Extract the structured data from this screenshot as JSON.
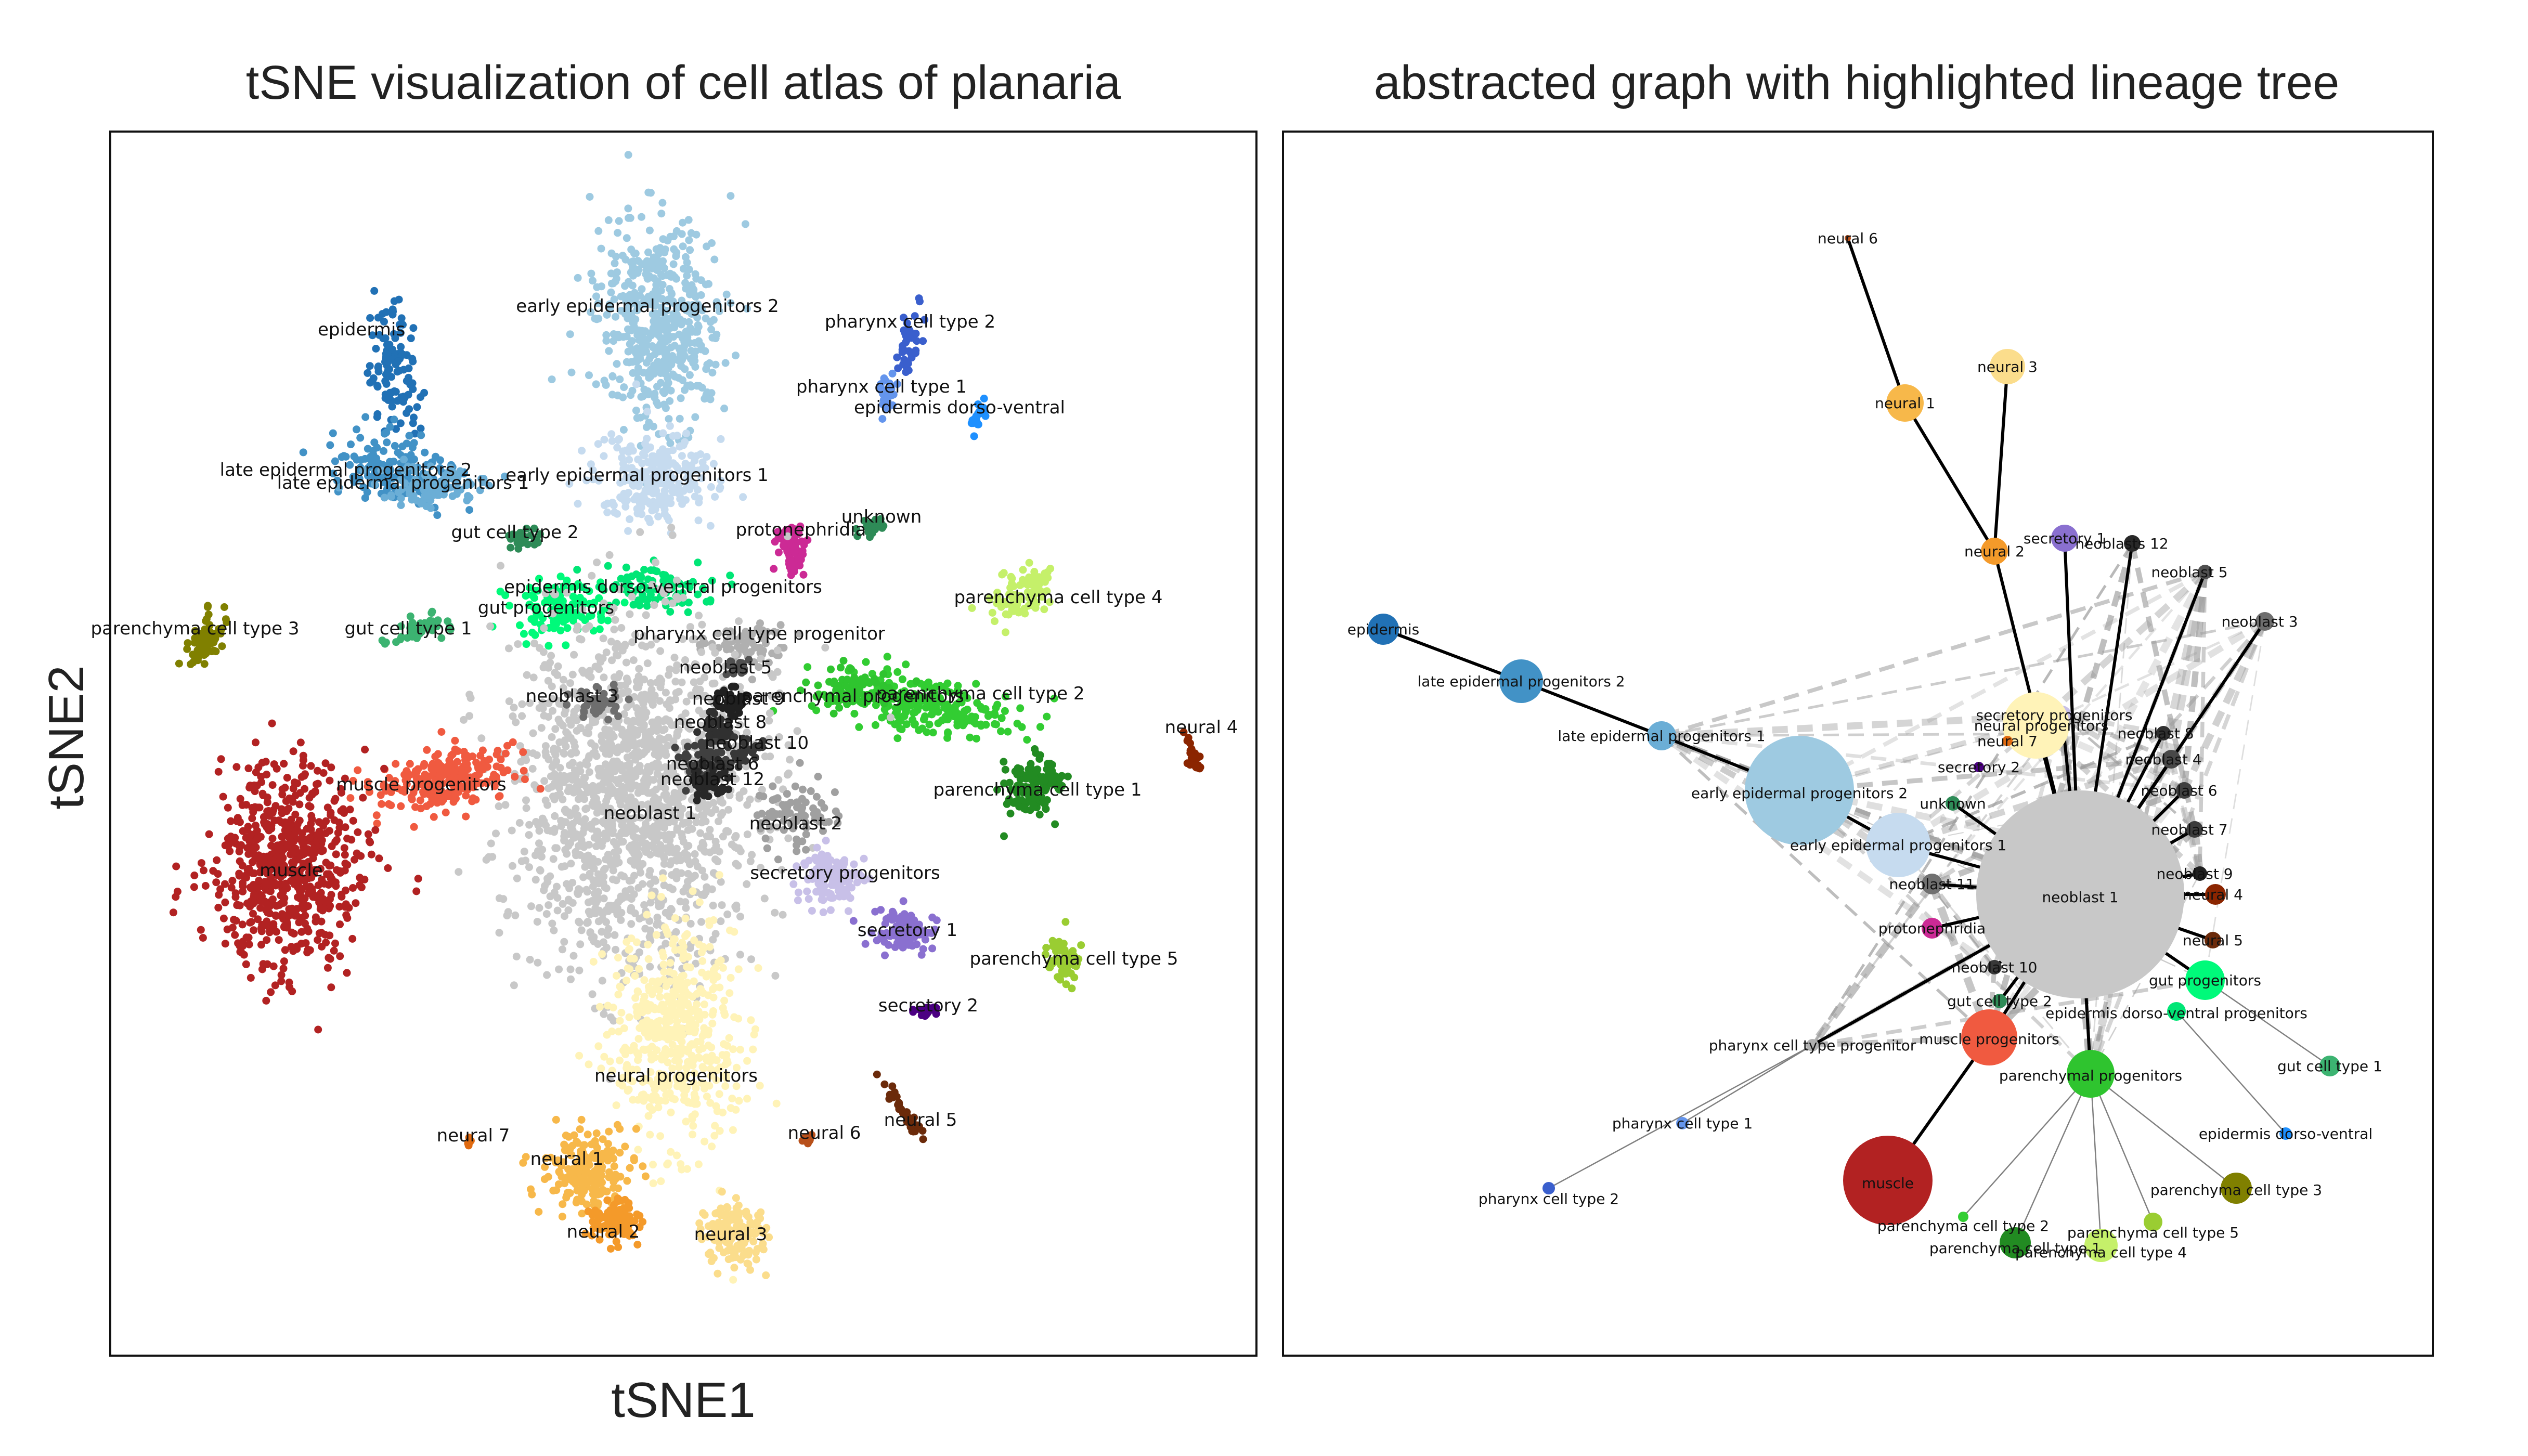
{
  "titles": {
    "left": "tSNE visualization of cell atlas of planaria",
    "right": "abstracted graph with highlighted lineage tree"
  },
  "axes": {
    "x_label": "tSNE1",
    "y_label": "tSNE2"
  },
  "tsne_clusters": [
    {
      "label": "early epidermal progenitors 2",
      "color": "#9ecae1"
    },
    {
      "label": "early epidermal progenitors 1",
      "color": "#c6dbef"
    },
    {
      "label": "epidermis",
      "color": "#2171b5"
    },
    {
      "label": "late epidermal progenitors 2",
      "color": "#4292c6"
    },
    {
      "label": "late epidermal progenitors 1",
      "color": "#6baed6"
    },
    {
      "label": "pharynx cell type 2",
      "color": "#3a5fcd"
    },
    {
      "label": "pharynx cell type 1",
      "color": "#6495ed"
    },
    {
      "label": "epidermis dorso-ventral",
      "color": "#1e90ff"
    },
    {
      "label": "gut cell type 2",
      "color": "#2e8b57"
    },
    {
      "label": "gut cell type 1",
      "color": "#3cb371"
    },
    {
      "label": "gut progenitors",
      "color": "#00fa7a"
    },
    {
      "label": "epidermis dorso-ventral progenitors",
      "color": "#00e676"
    },
    {
      "label": "protonephridia",
      "color": "#cc2a95"
    },
    {
      "label": "unknown",
      "color": "#2e8b57"
    },
    {
      "label": "parenchyma cell type 4",
      "color": "#c5f06a"
    },
    {
      "label": "parenchyma cell type 3",
      "color": "#808000"
    },
    {
      "label": "parenchyma cell type 2",
      "color": "#32cd32"
    },
    {
      "label": "parenchyma cell type 1",
      "color": "#228b22"
    },
    {
      "label": "parenchyma cell type 5",
      "color": "#9acd32"
    },
    {
      "label": "parenchymal progenitors",
      "color": "#2fc42f"
    },
    {
      "label": "pharynx cell type progenitor",
      "color": "#b0b0b0"
    },
    {
      "label": "neoblast 1",
      "color": "#c8c8c8"
    },
    {
      "label": "neoblast 2",
      "color": "#a0a0a0"
    },
    {
      "label": "neoblast 3",
      "color": "#6e6e6e"
    },
    {
      "label": "neoblast 5",
      "color": "#505050"
    },
    {
      "label": "neoblast 6",
      "color": "#404040"
    },
    {
      "label": "neoblast 8",
      "color": "#303030"
    },
    {
      "label": "neoblast 9",
      "color": "#202020"
    },
    {
      "label": "neoblast 10",
      "color": "#383838"
    },
    {
      "label": "neoblast 12",
      "color": "#282828"
    },
    {
      "label": "neural 4",
      "color": "#8b2500"
    },
    {
      "label": "neural 5",
      "color": "#6b2a0a"
    },
    {
      "label": "neural 6",
      "color": "#b8501a"
    },
    {
      "label": "neural 7",
      "color": "#e06a10"
    },
    {
      "label": "muscle progenitors",
      "color": "#f05a40"
    },
    {
      "label": "muscle",
      "color": "#b22222"
    },
    {
      "label": "secretory progenitors",
      "color": "#c8c0e8"
    },
    {
      "label": "secretory 1",
      "color": "#8a70d0"
    },
    {
      "label": "secretory 2",
      "color": "#4b0082"
    },
    {
      "label": "neural progenitors",
      "color": "#fff3b8"
    },
    {
      "label": "neural 1",
      "color": "#f7b84a"
    },
    {
      "label": "neural 2",
      "color": "#f49a2a"
    },
    {
      "label": "neural 3",
      "color": "#fbdd8c"
    }
  ],
  "graph_nodes": [
    {
      "label": "neural 6",
      "color": "#b8501a"
    },
    {
      "label": "neural 3",
      "color": "#fbdd8c"
    },
    {
      "label": "neural 1",
      "color": "#f7b84a"
    },
    {
      "label": "neural 2",
      "color": "#f49a2a"
    },
    {
      "label": "secretory 1",
      "color": "#8a70d0"
    },
    {
      "label": "neoblasts 12",
      "color": "#282828"
    },
    {
      "label": "neoblast 5",
      "color": "#505050"
    },
    {
      "label": "neoblast 3",
      "color": "#6e6e6e"
    },
    {
      "label": "epidermis",
      "color": "#2171b5"
    },
    {
      "label": "late epidermal progenitors 2",
      "color": "#4292c6"
    },
    {
      "label": "late epidermal progenitors 1",
      "color": "#6baed6"
    },
    {
      "label": "secretory progenitors",
      "color": "#c8c0e8"
    },
    {
      "label": "neural progenitors",
      "color": "#fff3b8"
    },
    {
      "label": "neural 7",
      "color": "#e06a10"
    },
    {
      "label": "neoblast 8",
      "color": "#303030"
    },
    {
      "label": "secretory 2",
      "color": "#4b0082"
    },
    {
      "label": "neoblast 4",
      "color": "#484848"
    },
    {
      "label": "early epidermal progenitors 2",
      "color": "#9ecae1"
    },
    {
      "label": "unknown",
      "color": "#2e8b57"
    },
    {
      "label": "neoblast 6",
      "color": "#404040"
    },
    {
      "label": "neoblast 7",
      "color": "#3c3c3c"
    },
    {
      "label": "early epidermal progenitors 1",
      "color": "#c6dbef"
    },
    {
      "label": "neoblast 1",
      "color": "#c8c8c8"
    },
    {
      "label": "neoblast 9",
      "color": "#202020"
    },
    {
      "label": "neoblast 11",
      "color": "#707070"
    },
    {
      "label": "neural 4",
      "color": "#8b2500"
    },
    {
      "label": "protonephridia",
      "color": "#cc2a95"
    },
    {
      "label": "neural 5",
      "color": "#6b2a0a"
    },
    {
      "label": "neoblast 10",
      "color": "#383838"
    },
    {
      "label": "gut progenitors",
      "color": "#00fa7a"
    },
    {
      "label": "gut cell type 2",
      "color": "#2e8b57"
    },
    {
      "label": "epidermis dorso-ventral progenitors",
      "color": "#00e676"
    },
    {
      "label": "muscle progenitors",
      "color": "#f05a40"
    },
    {
      "label": "pharynx cell type progenitor",
      "color": "#b0b0b0"
    },
    {
      "label": "gut cell type 1",
      "color": "#3cb371"
    },
    {
      "label": "parenchymal progenitors",
      "color": "#2fc42f"
    },
    {
      "label": "pharynx cell type 1",
      "color": "#6495ed"
    },
    {
      "label": "epidermis dorso-ventral",
      "color": "#1e90ff"
    },
    {
      "label": "muscle",
      "color": "#b22222"
    },
    {
      "label": "parenchyma cell type 3",
      "color": "#808000"
    },
    {
      "label": "pharynx cell type 2",
      "color": "#3a5fcd"
    },
    {
      "label": "parenchyma cell type 2",
      "color": "#32cd32"
    },
    {
      "label": "parenchyma cell type 5",
      "color": "#9acd32"
    },
    {
      "label": "parenchyma cell type 1",
      "color": "#228b22"
    },
    {
      "label": "parenchyma cell type 4",
      "color": "#c5f06a"
    }
  ],
  "tree_edges": [
    [
      "neural 6",
      "neural 1"
    ],
    [
      "neural 1",
      "neural 2"
    ],
    [
      "neural 3",
      "neural 2"
    ],
    [
      "neural 2",
      "neoblast 1"
    ],
    [
      "secretory 1",
      "neoblast 1"
    ],
    [
      "neoblasts 12",
      "neoblast 1"
    ],
    [
      "neoblast 5",
      "neoblast 1"
    ],
    [
      "neoblast 3",
      "neoblast 1"
    ],
    [
      "neoblast 8",
      "neoblast 1"
    ],
    [
      "neoblast 4",
      "neoblast 1"
    ],
    [
      "neoblast 6",
      "neoblast 1"
    ],
    [
      "neoblast 7",
      "neoblast 1"
    ],
    [
      "neoblast 9",
      "neoblast 1"
    ],
    [
      "neural 4",
      "neoblast 1"
    ],
    [
      "neural 5",
      "neoblast 1"
    ],
    [
      "gut progenitors",
      "neoblast 1"
    ],
    [
      "epidermis",
      "late epidermal progenitors 2"
    ],
    [
      "late epidermal progenitors 2",
      "late epidermal progenitors 1"
    ],
    [
      "late epidermal progenitors 1",
      "early epidermal progenitors 2"
    ],
    [
      "early epidermal progenitors 2",
      "early epidermal progenitors 1"
    ],
    [
      "early epidermal progenitors 1",
      "neoblast 1"
    ],
    [
      "neoblast 11",
      "neoblast 1"
    ],
    [
      "protonephridia",
      "neoblast 1"
    ],
    [
      "neoblast 10",
      "neoblast 1"
    ],
    [
      "gut cell type 2",
      "neoblast 1"
    ],
    [
      "muscle progenitors",
      "neoblast 1"
    ],
    [
      "muscle",
      "muscle progenitors"
    ],
    [
      "pharynx cell type progenitor",
      "neoblast 1"
    ],
    [
      "parenchymal progenitors",
      "neoblast 1"
    ],
    [
      "unknown",
      "neoblast 1"
    ],
    [
      "secretory progenitors",
      "neoblast 1"
    ],
    [
      "neural progenitors",
      "neoblast 1"
    ]
  ]
}
